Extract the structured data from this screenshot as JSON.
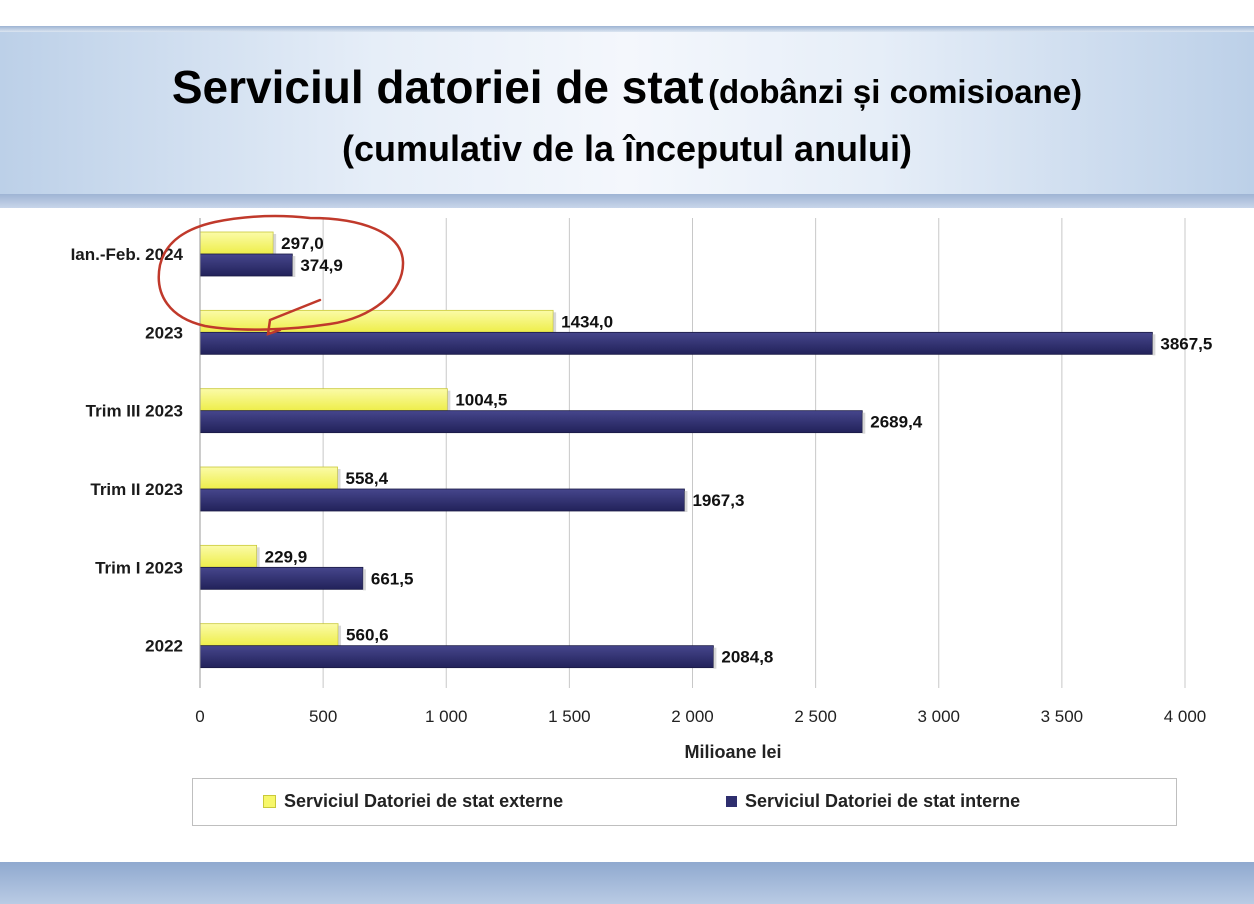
{
  "title": {
    "main": "Serviciul datoriei de stat",
    "paren": "(dobânzi și comisioane)",
    "line2": "(cumulativ de la începutul anului)"
  },
  "colors": {
    "external": "#f7f76a",
    "internal": "#2e2e6e",
    "annotation": "#c0392b",
    "grid": "#c8c8c8"
  },
  "chart_data": {
    "type": "bar",
    "orientation": "horizontal",
    "categories": [
      "Ian.-Feb. 2024",
      "2023",
      "Trim III 2023",
      "Trim II 2023",
      "Trim I 2023",
      "2022"
    ],
    "series": [
      {
        "name": "Serviciul Datoriei de stat externe",
        "values": [
          297.0,
          1434.0,
          1004.5,
          558.4,
          229.9,
          560.6
        ],
        "labels": [
          "297,0",
          "1434,0",
          "1004,5",
          "558,4",
          "229,9",
          "560,6"
        ]
      },
      {
        "name": "Serviciul Datoriei de stat interne",
        "values": [
          374.9,
          3867.5,
          2689.4,
          1967.3,
          661.5,
          2084.8
        ],
        "labels": [
          "374,9",
          "3867,5",
          "2689,4",
          "1967,3",
          "661,5",
          "2084,8"
        ]
      }
    ],
    "xlabel": "Milioane lei",
    "xlim": [
      0,
      4000
    ],
    "xticks": [
      0,
      500,
      1000,
      1500,
      2000,
      2500,
      3000,
      3500,
      4000
    ],
    "xtick_labels": [
      "0",
      "500",
      "1 000",
      "1 500",
      "2 000",
      "2 500",
      "3 000",
      "3 500",
      "4 000"
    ],
    "grid": true,
    "legend": "bottom",
    "annotation": "hand-drawn red circle around Ian.-Feb. 2024 bars"
  }
}
